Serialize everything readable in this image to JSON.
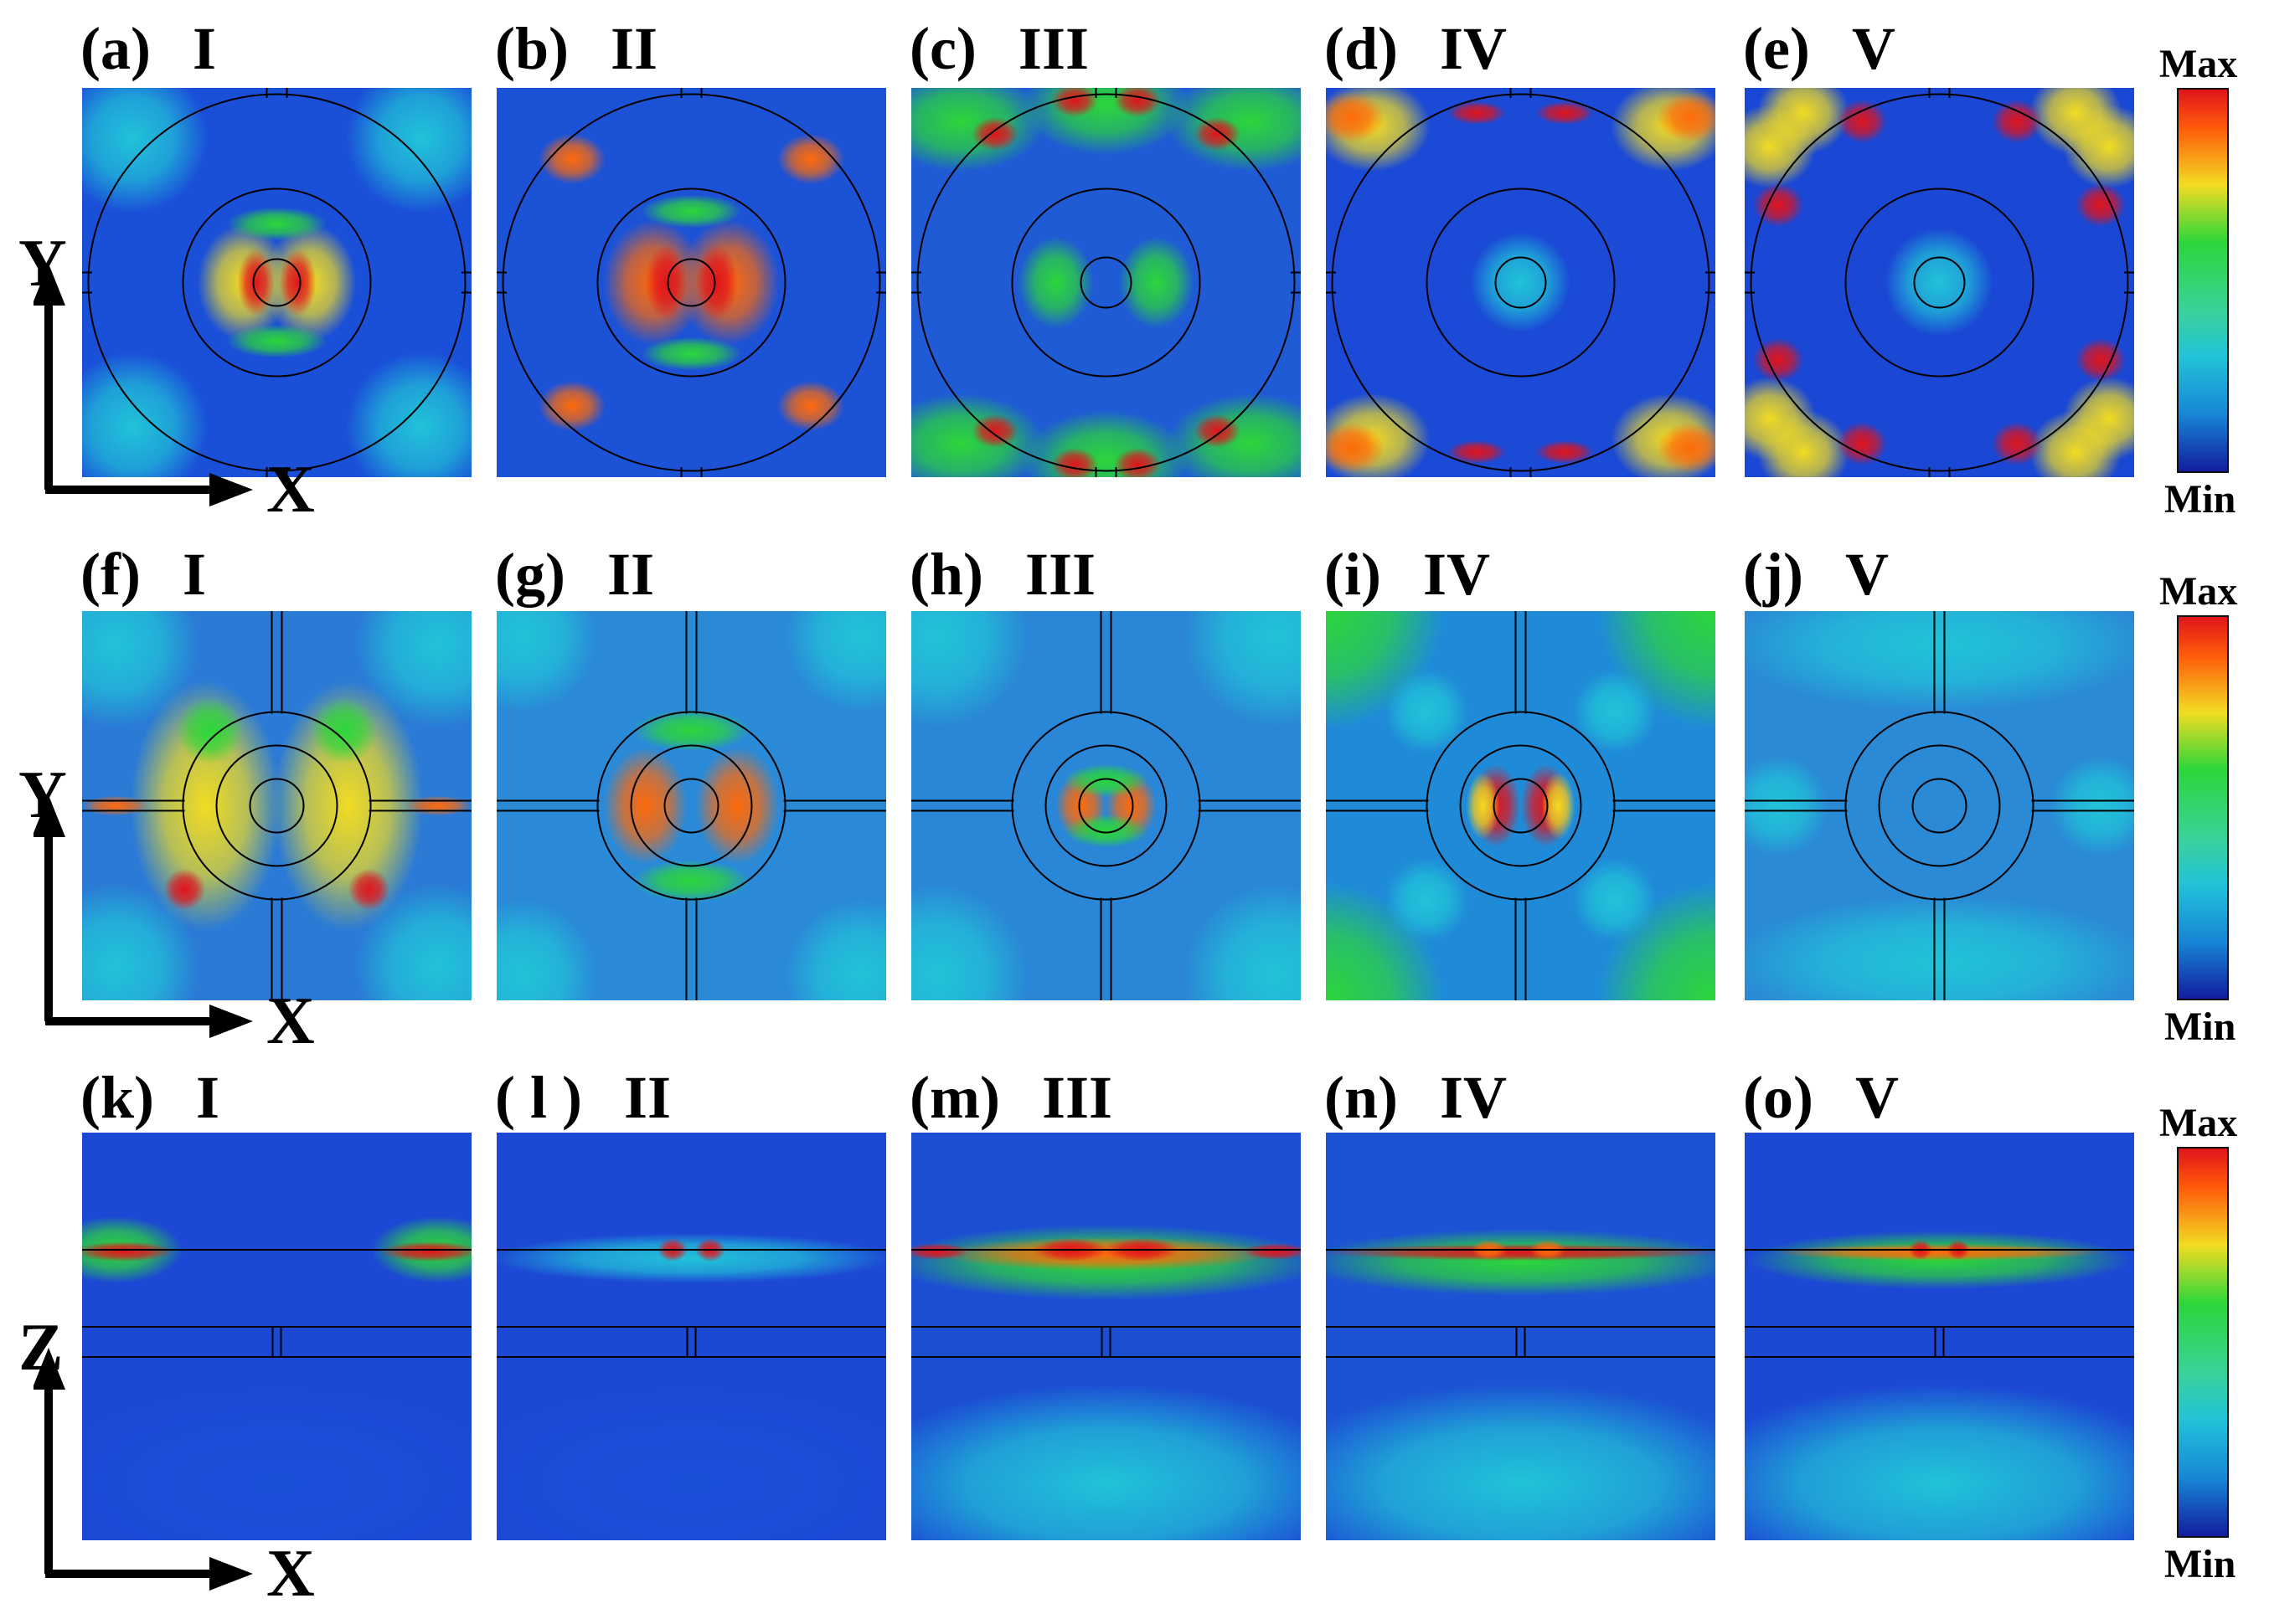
{
  "figure": {
    "rows": [
      {
        "view": "xy",
        "axis_labels": {
          "horizontal": "X",
          "vertical": "Y"
        },
        "colorbar": {
          "max": "Max",
          "min": "Min"
        },
        "panels": [
          {
            "letter": "(a)",
            "mode": "I"
          },
          {
            "letter": "(b)",
            "mode": "II"
          },
          {
            "letter": "(c)",
            "mode": "III"
          },
          {
            "letter": "(d)",
            "mode": "IV"
          },
          {
            "letter": "(e)",
            "mode": "V"
          }
        ]
      },
      {
        "view": "xy",
        "axis_labels": {
          "horizontal": "X",
          "vertical": "Y"
        },
        "colorbar": {
          "max": "Max",
          "min": "Min"
        },
        "panels": [
          {
            "letter": "(f)",
            "mode": "I"
          },
          {
            "letter": "(g)",
            "mode": "II"
          },
          {
            "letter": "(h)",
            "mode": "III"
          },
          {
            "letter": "(i)",
            "mode": "IV"
          },
          {
            "letter": "(j)",
            "mode": "V"
          }
        ]
      },
      {
        "view": "xz",
        "axis_labels": {
          "horizontal": "X",
          "vertical": "Z"
        },
        "colorbar": {
          "max": "Max",
          "min": "Min"
        },
        "panels": [
          {
            "letter": "(k)",
            "mode": "I"
          },
          {
            "letter": "( l )",
            "mode": "II"
          },
          {
            "letter": "(m)",
            "mode": "III"
          },
          {
            "letter": "(n)",
            "mode": "IV"
          },
          {
            "letter": "(o)",
            "mode": "V"
          }
        ]
      }
    ],
    "colors": {
      "max": "#e0141c",
      "orange": "#ff6a0a",
      "yellow": "#f2dc22",
      "green": "#2cd63a",
      "cyan": "#21c3d8",
      "blue": "#1a4fd8",
      "min": "#121d9e",
      "outline": "#000000"
    }
  }
}
